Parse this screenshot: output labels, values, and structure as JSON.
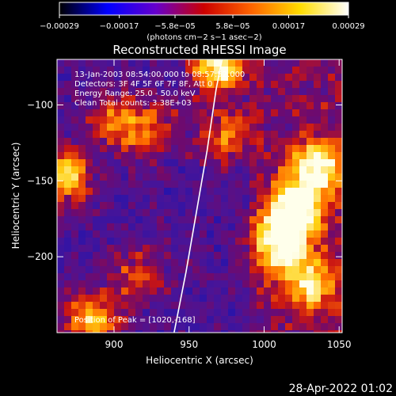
{
  "chart_data": {
    "type": "heatmap",
    "title": "Reconstructed RHESSI Image",
    "xlabel": "Heliocentric X (arcsec)",
    "ylabel": "Heliocentric Y (arcsec)",
    "xlim": [
      862,
      1052
    ],
    "ylim": [
      -250,
      -70
    ],
    "x_ticks": [
      900,
      950,
      1000,
      1050
    ],
    "x_tick_labels": [
      "900",
      "950",
      "1000",
      "1050"
    ],
    "y_ticks": [
      -100,
      -150,
      -200
    ],
    "y_tick_labels": [
      "−100",
      "−150",
      "−200"
    ],
    "colorbar": {
      "min": -0.00029,
      "max": 0.00029,
      "ticks": [
        -0.00029,
        -0.00017,
        -5.8e-05,
        5.8e-05,
        0.00017,
        0.00029
      ],
      "tick_labels": [
        "−0.00029",
        "−0.00017",
        "−5.8e−05",
        "5.8e−05",
        "0.00017",
        "0.00029"
      ],
      "unit_label": "(photons cm−2 s−1 asec−2)",
      "colors": [
        "#000000",
        "#0000ff",
        "#6600cc",
        "#cc0000",
        "#ff6600",
        "#ffdd00",
        "#ffffff"
      ]
    },
    "annotations": {
      "time": "13-Jan-2003 08:54:00.000 to 08:57:52.000",
      "detectors": "Detectors: 3F 4F 5F 6F 7F 8F, Att 0",
      "energy": "Energy Range: 25.0 - 50.0 keV",
      "clean": "Clean     Total counts: 3.38E+03",
      "peak": "Position of Peak = [1020,-168]"
    },
    "limb_curve": [
      [
        940,
        -250
      ],
      [
        948,
        -210
      ],
      [
        955,
        -170
      ],
      [
        962,
        -130
      ],
      [
        968,
        -90
      ],
      [
        972,
        -70
      ]
    ],
    "bright_regions": [
      {
        "x": 1020,
        "y": -168,
        "level": 1.0
      },
      {
        "x": 1035,
        "y": -140,
        "level": 0.8
      },
      {
        "x": 1010,
        "y": -190,
        "level": 0.75
      },
      {
        "x": 1030,
        "y": -215,
        "level": 0.6
      },
      {
        "x": 970,
        "y": -75,
        "level": 0.9
      },
      {
        "x": 865,
        "y": -145,
        "level": 0.8
      },
      {
        "x": 885,
        "y": -240,
        "level": 0.7
      },
      {
        "x": 900,
        "y": -110,
        "level": 0.5
      },
      {
        "x": 925,
        "y": -115,
        "level": 0.45
      },
      {
        "x": 975,
        "y": -120,
        "level": 0.5
      },
      {
        "x": 915,
        "y": -210,
        "level": 0.4
      }
    ]
  },
  "footer": {
    "timestamp": "28-Apr-2022 01:02"
  }
}
